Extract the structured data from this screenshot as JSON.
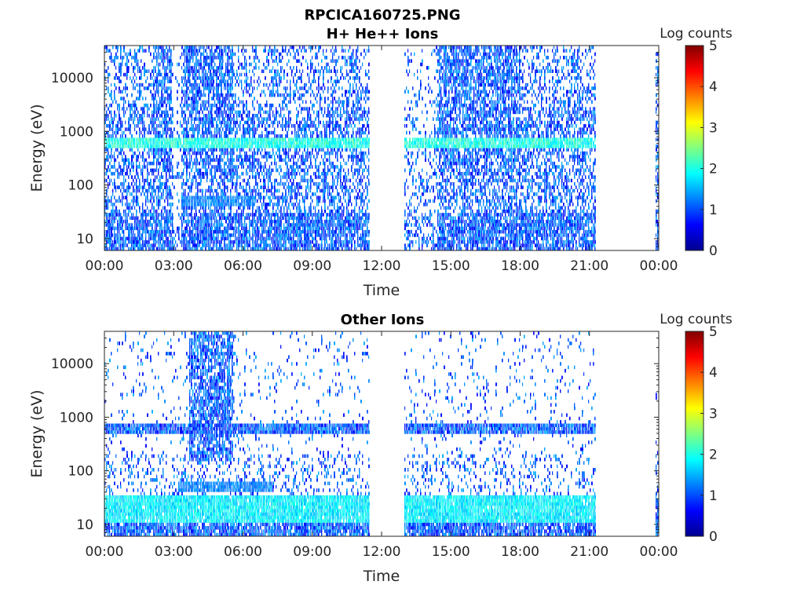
{
  "figure_title": "RPCICA160725.PNG",
  "colors": {
    "jet": [
      "#00008f",
      "#0000ff",
      "#0080ff",
      "#00ffff",
      "#80ff80",
      "#ffff00",
      "#ff8000",
      "#ff0000",
      "#800000"
    ],
    "axis": "#262626"
  },
  "chart_data": [
    {
      "type": "heatmap",
      "title": "H+ He++ Ions",
      "xlabel": "Time",
      "ylabel": "Energy (eV)",
      "x_ticks": [
        "00:00",
        "03:00",
        "06:00",
        "09:00",
        "12:00",
        "15:00",
        "18:00",
        "21:00",
        "00:00"
      ],
      "xlim_hours": [
        0,
        24
      ],
      "y_scale": "log",
      "y_ticks": [
        "10",
        "100",
        "1000",
        "10000"
      ],
      "ylim": [
        6,
        40000
      ],
      "colorbar": {
        "label": "Log counts",
        "min": 0,
        "max": 5,
        "ticks": [
          "0",
          "1",
          "2",
          "3",
          "4",
          "5"
        ]
      },
      "data_gaps_hours": [
        [
          11.5,
          13.0
        ],
        [
          21.3,
          23.9
        ]
      ],
      "features": [
        {
          "desc": "enhanced band",
          "energy_eV": 600,
          "hours": [
            0,
            21.3
          ],
          "log_counts": 2.0
        },
        {
          "desc": "low energy band",
          "energy_eV": 50,
          "hours": [
            3.3,
            6.5
          ],
          "log_counts": 1.2
        },
        {
          "desc": "high energy burst",
          "hours": [
            2.1,
            2.9
          ],
          "log_counts": 0.4
        },
        {
          "desc": "high energy burst",
          "hours": [
            3.5,
            5.6
          ],
          "log_counts": 0.5
        },
        {
          "desc": "high energy burst",
          "hours": [
            14.5,
            18.0
          ],
          "log_counts": 0.4
        }
      ]
    },
    {
      "type": "heatmap",
      "title": "Other Ions",
      "xlabel": "Time",
      "ylabel": "Energy (eV)",
      "x_ticks": [
        "00:00",
        "03:00",
        "06:00",
        "09:00",
        "12:00",
        "15:00",
        "18:00",
        "21:00",
        "00:00"
      ],
      "xlim_hours": [
        0,
        24
      ],
      "y_scale": "log",
      "y_ticks": [
        "10",
        "100",
        "1000",
        "10000"
      ],
      "ylim": [
        6,
        40000
      ],
      "colorbar": {
        "label": "Log counts",
        "min": 0,
        "max": 5,
        "ticks": [
          "0",
          "1",
          "2",
          "3",
          "4",
          "5"
        ]
      },
      "data_gaps_hours": [
        [
          11.5,
          13.0
        ],
        [
          21.3,
          23.9
        ]
      ],
      "features": [
        {
          "desc": "low energy band",
          "energy_eV": 20,
          "hours": [
            0,
            21.3
          ],
          "log_counts": 1.8
        },
        {
          "desc": "faint band",
          "energy_eV": 600,
          "hours": [
            0,
            21.3
          ],
          "log_counts": 0.6
        },
        {
          "desc": "low energy band",
          "energy_eV": 50,
          "hours": [
            3.2,
            7.3
          ],
          "log_counts": 1.2
        },
        {
          "desc": "high energy burst",
          "hours": [
            3.7,
            5.6
          ],
          "log_counts": 0.5
        }
      ]
    }
  ]
}
